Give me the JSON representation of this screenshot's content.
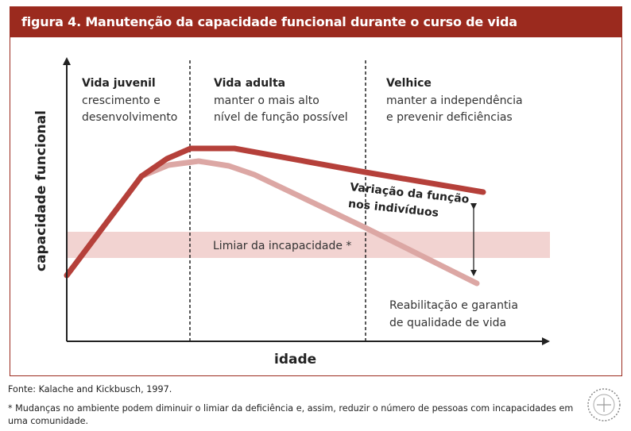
{
  "figure": {
    "title": "figura 4. Manutenção da capacidade funcional durante o curso de vida"
  },
  "axes": {
    "y_label": "capacidade funcional",
    "x_label": "idade"
  },
  "phases": [
    {
      "title": "Vida juvenil",
      "desc_1": "crescimento e",
      "desc_2": "desenvolvimento"
    },
    {
      "title": "Vida adulta",
      "desc_1": "manter o mais alto",
      "desc_2": "nível de função possível"
    },
    {
      "title": "Velhice",
      "desc_1": "manter a independência",
      "desc_2": "e prevenir deficiências"
    }
  ],
  "annotations": {
    "threshold": "Limiar da incapacidade *",
    "variation_1": "Variação da função",
    "variation_2": "nos indivíduos",
    "rehab_1": "Reabilitação e garantia",
    "rehab_2": "de qualidade de vida"
  },
  "footer": {
    "source": "Fonte: Kalache and Kickbusch, 1997.",
    "note": "* Mudanças no ambiente podem diminuir o limiar da deficiência e, assim, reduzir o número de pessoas com incapacidades em uma comunidade."
  },
  "colors": {
    "title_bar": "#9b2a1e",
    "upper_curve": "#b5403a",
    "lower_curve": "#dca7a4",
    "threshold_band": "#f2d3d1"
  }
}
